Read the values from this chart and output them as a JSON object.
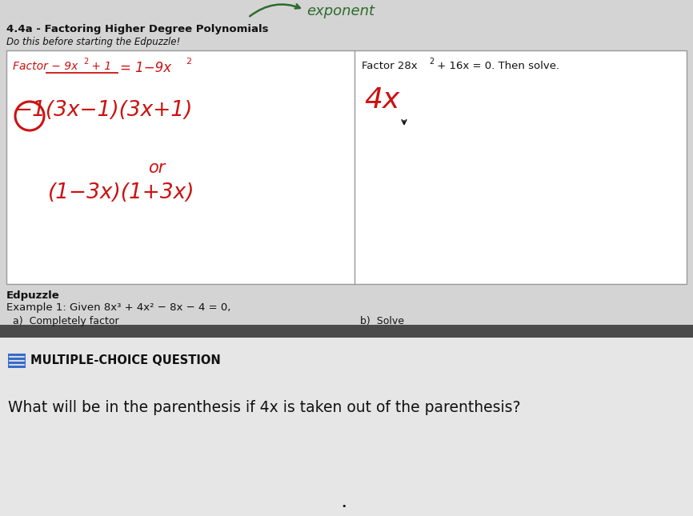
{
  "top_bg": "#d9d9d9",
  "bottom_bg": "#e8e8e8",
  "white_box": "#ffffff",
  "title_line1": "4.4a - Factoring Higher Degree Polynomials",
  "title_line2": "Do this before starting the Edpuzzle!",
  "arrow_label": "exponent",
  "right_box_line1a": "Factor 28x",
  "right_box_line1b": "+ 16x = 0. Then solve.",
  "right_box_line2": "4x",
  "edpuzzle_label": "Edpuzzle",
  "example_line": "Example 1: Given 8x³ + 4x² − 8x − 4 = 0,",
  "part_a": "a)  Completely factor",
  "part_b": "b)  Solve",
  "mcq_label": "MULTIPLE-CHOICE QUESTION",
  "question": "What will be in the parenthesis if 4x is taken out of the parenthesis?",
  "divider_color": "#4a4a4a",
  "box_border_color": "#999999",
  "mcq_box_color": "#3a6bc4",
  "red": "#cc1111",
  "black": "#111111",
  "arrow_color": "#2d6a2d",
  "text_color_dark": "#1a1a1a"
}
